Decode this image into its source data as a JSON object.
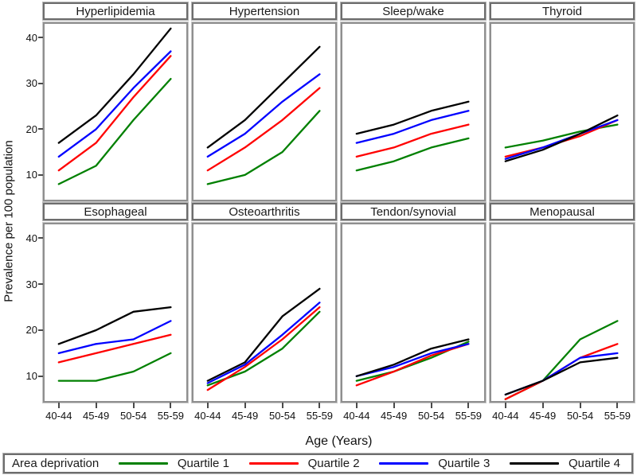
{
  "figure": {
    "ylabel": "Prevalence per 100 population",
    "xlabel": "Age (Years)",
    "legend": {
      "title": "Area deprivation",
      "entries": [
        {
          "label": "Quartile 1",
          "color": "#008000"
        },
        {
          "label": "Quartile 2",
          "color": "#ff0000"
        },
        {
          "label": "Quartile 3",
          "color": "#0000ff"
        },
        {
          "label": "Quartile 4",
          "color": "#000000"
        }
      ]
    }
  },
  "axes": {
    "ylim": [
      4.6,
      43
    ],
    "yticks": [
      10,
      20,
      30,
      40
    ],
    "categories": [
      "40-44",
      "45-49",
      "50-54",
      "55-59"
    ],
    "grid": false,
    "legend_position": "bottom"
  },
  "chart_data": [
    {
      "type": "line",
      "title": "Hyperlipidemia",
      "row": 0,
      "categories": [
        "40-44",
        "45-49",
        "50-54",
        "55-59"
      ],
      "ylim": [
        4.6,
        43
      ],
      "series": [
        {
          "name": "Quartile 1",
          "color": "#008000",
          "values": [
            8,
            12,
            22,
            31
          ]
        },
        {
          "name": "Quartile 2",
          "color": "#ff0000",
          "values": [
            11,
            17,
            27,
            36
          ]
        },
        {
          "name": "Quartile 3",
          "color": "#0000ff",
          "values": [
            14,
            20,
            29,
            37
          ]
        },
        {
          "name": "Quartile 4",
          "color": "#000000",
          "values": [
            17,
            23,
            32,
            42
          ]
        }
      ]
    },
    {
      "type": "line",
      "title": "Hypertension",
      "row": 0,
      "categories": [
        "40-44",
        "45-49",
        "50-54",
        "55-59"
      ],
      "ylim": [
        4.6,
        43
      ],
      "series": [
        {
          "name": "Quartile 1",
          "color": "#008000",
          "values": [
            8,
            10,
            15,
            24
          ]
        },
        {
          "name": "Quartile 2",
          "color": "#ff0000",
          "values": [
            11,
            16,
            22,
            29
          ]
        },
        {
          "name": "Quartile 3",
          "color": "#0000ff",
          "values": [
            14,
            19,
            26,
            32
          ]
        },
        {
          "name": "Quartile 4",
          "color": "#000000",
          "values": [
            16,
            22,
            30,
            38
          ]
        }
      ]
    },
    {
      "type": "line",
      "title": "Sleep/wake",
      "row": 0,
      "categories": [
        "40-44",
        "45-49",
        "50-54",
        "55-59"
      ],
      "ylim": [
        4.6,
        43
      ],
      "series": [
        {
          "name": "Quartile 1",
          "color": "#008000",
          "values": [
            11,
            13,
            16,
            18
          ]
        },
        {
          "name": "Quartile 2",
          "color": "#ff0000",
          "values": [
            14,
            16,
            19,
            21
          ]
        },
        {
          "name": "Quartile 3",
          "color": "#0000ff",
          "values": [
            17,
            19,
            22,
            24
          ]
        },
        {
          "name": "Quartile 4",
          "color": "#000000",
          "values": [
            19,
            21,
            24,
            26
          ]
        }
      ]
    },
    {
      "type": "line",
      "title": "Thyroid",
      "row": 0,
      "categories": [
        "40-44",
        "45-49",
        "50-54",
        "55-59"
      ],
      "ylim": [
        4.6,
        43
      ],
      "series": [
        {
          "name": "Quartile 1",
          "color": "#008000",
          "values": [
            16,
            17.5,
            19.5,
            21
          ]
        },
        {
          "name": "Quartile 2",
          "color": "#ff0000",
          "values": [
            14,
            16,
            18.5,
            22
          ]
        },
        {
          "name": "Quartile 3",
          "color": "#0000ff",
          "values": [
            13.5,
            16,
            19,
            22
          ]
        },
        {
          "name": "Quartile 4",
          "color": "#000000",
          "values": [
            13,
            15.5,
            19,
            23
          ]
        }
      ]
    },
    {
      "type": "line",
      "title": "Esophageal",
      "row": 1,
      "categories": [
        "40-44",
        "45-49",
        "50-54",
        "55-59"
      ],
      "ylim": [
        4.6,
        43
      ],
      "series": [
        {
          "name": "Quartile 1",
          "color": "#008000",
          "values": [
            9,
            9,
            11,
            15
          ]
        },
        {
          "name": "Quartile 2",
          "color": "#ff0000",
          "values": [
            13,
            15,
            17,
            19
          ]
        },
        {
          "name": "Quartile 3",
          "color": "#0000ff",
          "values": [
            15,
            17,
            18,
            22
          ]
        },
        {
          "name": "Quartile 4",
          "color": "#000000",
          "values": [
            17,
            20,
            24,
            25
          ]
        }
      ]
    },
    {
      "type": "line",
      "title": "Osteoarthritis",
      "row": 1,
      "categories": [
        "40-44",
        "45-49",
        "50-54",
        "55-59"
      ],
      "ylim": [
        4.6,
        43
      ],
      "series": [
        {
          "name": "Quartile 1",
          "color": "#008000",
          "values": [
            8,
            11,
            16,
            24
          ]
        },
        {
          "name": "Quartile 2",
          "color": "#ff0000",
          "values": [
            7,
            12,
            18,
            25
          ]
        },
        {
          "name": "Quartile 3",
          "color": "#0000ff",
          "values": [
            8.5,
            12.5,
            19,
            26
          ]
        },
        {
          "name": "Quartile 4",
          "color": "#000000",
          "values": [
            9,
            13,
            23,
            29
          ]
        }
      ]
    },
    {
      "type": "line",
      "title": "Tendon/synovial",
      "row": 1,
      "categories": [
        "40-44",
        "45-49",
        "50-54",
        "55-59"
      ],
      "ylim": [
        4.6,
        43
      ],
      "series": [
        {
          "name": "Quartile 1",
          "color": "#008000",
          "values": [
            9,
            11,
            14,
            17.5
          ]
        },
        {
          "name": "Quartile 2",
          "color": "#ff0000",
          "values": [
            8,
            11,
            14.5,
            17
          ]
        },
        {
          "name": "Quartile 3",
          "color": "#0000ff",
          "values": [
            10,
            12,
            15,
            17
          ]
        },
        {
          "name": "Quartile 4",
          "color": "#000000",
          "values": [
            10,
            12.5,
            16,
            18
          ]
        }
      ]
    },
    {
      "type": "line",
      "title": "Menopausal",
      "row": 1,
      "categories": [
        "40-44",
        "45-49",
        "50-54",
        "55-59"
      ],
      "ylim": [
        4.6,
        43
      ],
      "series": [
        {
          "name": "Quartile 1",
          "color": "#008000",
          "values": [
            5,
            9,
            18,
            22
          ]
        },
        {
          "name": "Quartile 2",
          "color": "#ff0000",
          "values": [
            5,
            9,
            14,
            17
          ]
        },
        {
          "name": "Quartile 3",
          "color": "#0000ff",
          "values": [
            6,
            9,
            14,
            15
          ]
        },
        {
          "name": "Quartile 4",
          "color": "#000000",
          "values": [
            6,
            9,
            13,
            14
          ]
        }
      ]
    }
  ]
}
